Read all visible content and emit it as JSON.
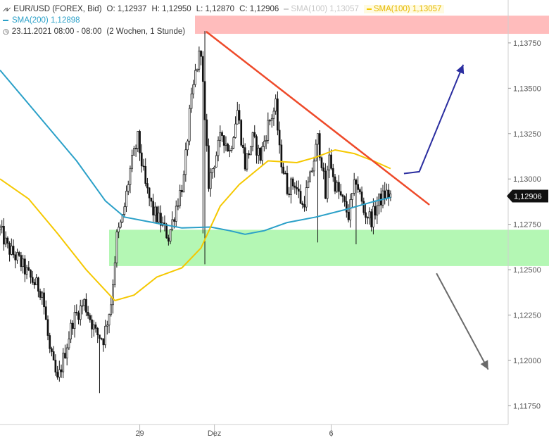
{
  "header": {
    "line1": {
      "symbol_icon": "candles-icon",
      "instrument": "EUR/USD (FOREX, Bid)",
      "open": "O: 1,12937",
      "high": "H: 1,12950",
      "low": "L: 1,12870",
      "close": "C: 1,12906",
      "sma100_faded": "SMA(100)  1,13057",
      "sma100": "SMA(100)  1,13057"
    },
    "line2": {
      "sma200": "SMA(200)  1,12898"
    },
    "line3": {
      "clock_icon": "clock-icon",
      "datetime": "23.11.2021 08:00 - 08:00",
      "range": "(2 Wochen, 1 Stunde)"
    }
  },
  "colors": {
    "candles": "#111111",
    "sma200": "#2aa0c8",
    "sma100": "#f5c800",
    "resistance_zone": "#ffbcbc",
    "support_zone": "#b4f7b4",
    "trendline": "#ee4a2a",
    "up_arrow": "#2b2ea0",
    "down_arrow": "#6a6a6a",
    "last_price_bg": "#111111"
  },
  "chart_data": {
    "type": "candlestick",
    "ylim": [
      1.1167,
      1.1387
    ],
    "y_ticks": [
      "1,13750",
      "1,13500",
      "1,13250",
      "1,13000",
      "1,12750",
      "1,12500",
      "1,12250",
      "1,12000",
      "1,11750"
    ],
    "y_tick_values": [
      1.1375,
      1.135,
      1.1325,
      1.13,
      1.1275,
      1.125,
      1.1225,
      1.12,
      1.1175
    ],
    "x_ticks": [
      "29",
      "Dez",
      "6"
    ],
    "x_tick_index": [
      73,
      112,
      173
    ],
    "bars": 205,
    "last_price_label": "1,12906",
    "last_price": 1.12906,
    "price_path": [
      [
        0,
        1.1272
      ],
      [
        4,
        1.1262
      ],
      [
        10,
        1.1255
      ],
      [
        16,
        1.1245
      ],
      [
        22,
        1.1238
      ],
      [
        26,
        1.1205
      ],
      [
        30,
        1.1188
      ],
      [
        34,
        1.1205
      ],
      [
        38,
        1.1222
      ],
      [
        44,
        1.1232
      ],
      [
        50,
        1.1215
      ],
      [
        54,
        1.1212
      ],
      [
        58,
        1.1232
      ],
      [
        61,
        1.1268
      ],
      [
        64,
        1.1278
      ],
      [
        68,
        1.1305
      ],
      [
        72,
        1.1322
      ],
      [
        76,
        1.1296
      ],
      [
        80,
        1.1282
      ],
      [
        84,
        1.1276
      ],
      [
        88,
        1.1268
      ],
      [
        92,
        1.1285
      ],
      [
        96,
        1.13
      ],
      [
        99,
        1.1335
      ],
      [
        102,
        1.1358
      ],
      [
        105,
        1.1372
      ],
      [
        107,
        1.133
      ],
      [
        109,
        1.1298
      ],
      [
        112,
        1.131
      ],
      [
        116,
        1.1325
      ],
      [
        120,
        1.1315
      ],
      [
        124,
        1.1338
      ],
      [
        128,
        1.1308
      ],
      [
        132,
        1.1322
      ],
      [
        136,
        1.1312
      ],
      [
        140,
        1.133
      ],
      [
        144,
        1.134
      ],
      [
        146,
        1.1315
      ],
      [
        150,
        1.1295
      ],
      [
        154,
        1.1298
      ],
      [
        158,
        1.1285
      ],
      [
        162,
        1.13
      ],
      [
        166,
        1.1322
      ],
      [
        168,
        1.131
      ],
      [
        170,
        1.129
      ],
      [
        172,
        1.1315
      ],
      [
        174,
        1.13
      ],
      [
        178,
        1.129
      ],
      [
        182,
        1.128
      ],
      [
        186,
        1.13
      ],
      [
        190,
        1.1282
      ],
      [
        194,
        1.1278
      ],
      [
        198,
        1.1288
      ],
      [
        202,
        1.1292
      ],
      [
        204,
        1.12906
      ]
    ],
    "sma200": [
      [
        0,
        1.136
      ],
      [
        20,
        1.1335
      ],
      [
        40,
        1.131
      ],
      [
        55,
        1.1288
      ],
      [
        65,
        1.1279
      ],
      [
        80,
        1.1276
      ],
      [
        95,
        1.1273
      ],
      [
        110,
        1.12735
      ],
      [
        120,
        1.12715
      ],
      [
        128,
        1.12695
      ],
      [
        138,
        1.12715
      ],
      [
        150,
        1.1276
      ],
      [
        165,
        1.1279
      ],
      [
        180,
        1.1283
      ],
      [
        195,
        1.12875
      ],
      [
        204,
        1.12898
      ]
    ],
    "sma100": [
      [
        0,
        1.13
      ],
      [
        15,
        1.1289
      ],
      [
        30,
        1.127
      ],
      [
        45,
        1.125
      ],
      [
        60,
        1.1233
      ],
      [
        70,
        1.1236
      ],
      [
        82,
        1.1246
      ],
      [
        95,
        1.1251
      ],
      [
        105,
        1.1262
      ],
      [
        115,
        1.1285
      ],
      [
        125,
        1.1297
      ],
      [
        140,
        1.131
      ],
      [
        155,
        1.1309
      ],
      [
        165,
        1.1312
      ],
      [
        175,
        1.1316
      ],
      [
        185,
        1.1314
      ],
      [
        195,
        1.131
      ],
      [
        204,
        1.13057
      ]
    ],
    "resistance_zone": [
      1.138,
      1.139
    ],
    "support_zone": [
      1.1252,
      1.1272
    ],
    "trendline": [
      [
        108,
        1.1381
      ],
      [
        224,
        1.1286
      ]
    ],
    "up_arrow": [
      [
        211,
        1.1303
      ],
      [
        219,
        1.1304
      ],
      [
        242,
        1.1363
      ]
    ],
    "down_arrow": [
      [
        228,
        1.1248
      ],
      [
        255,
        1.1195
      ]
    ]
  }
}
